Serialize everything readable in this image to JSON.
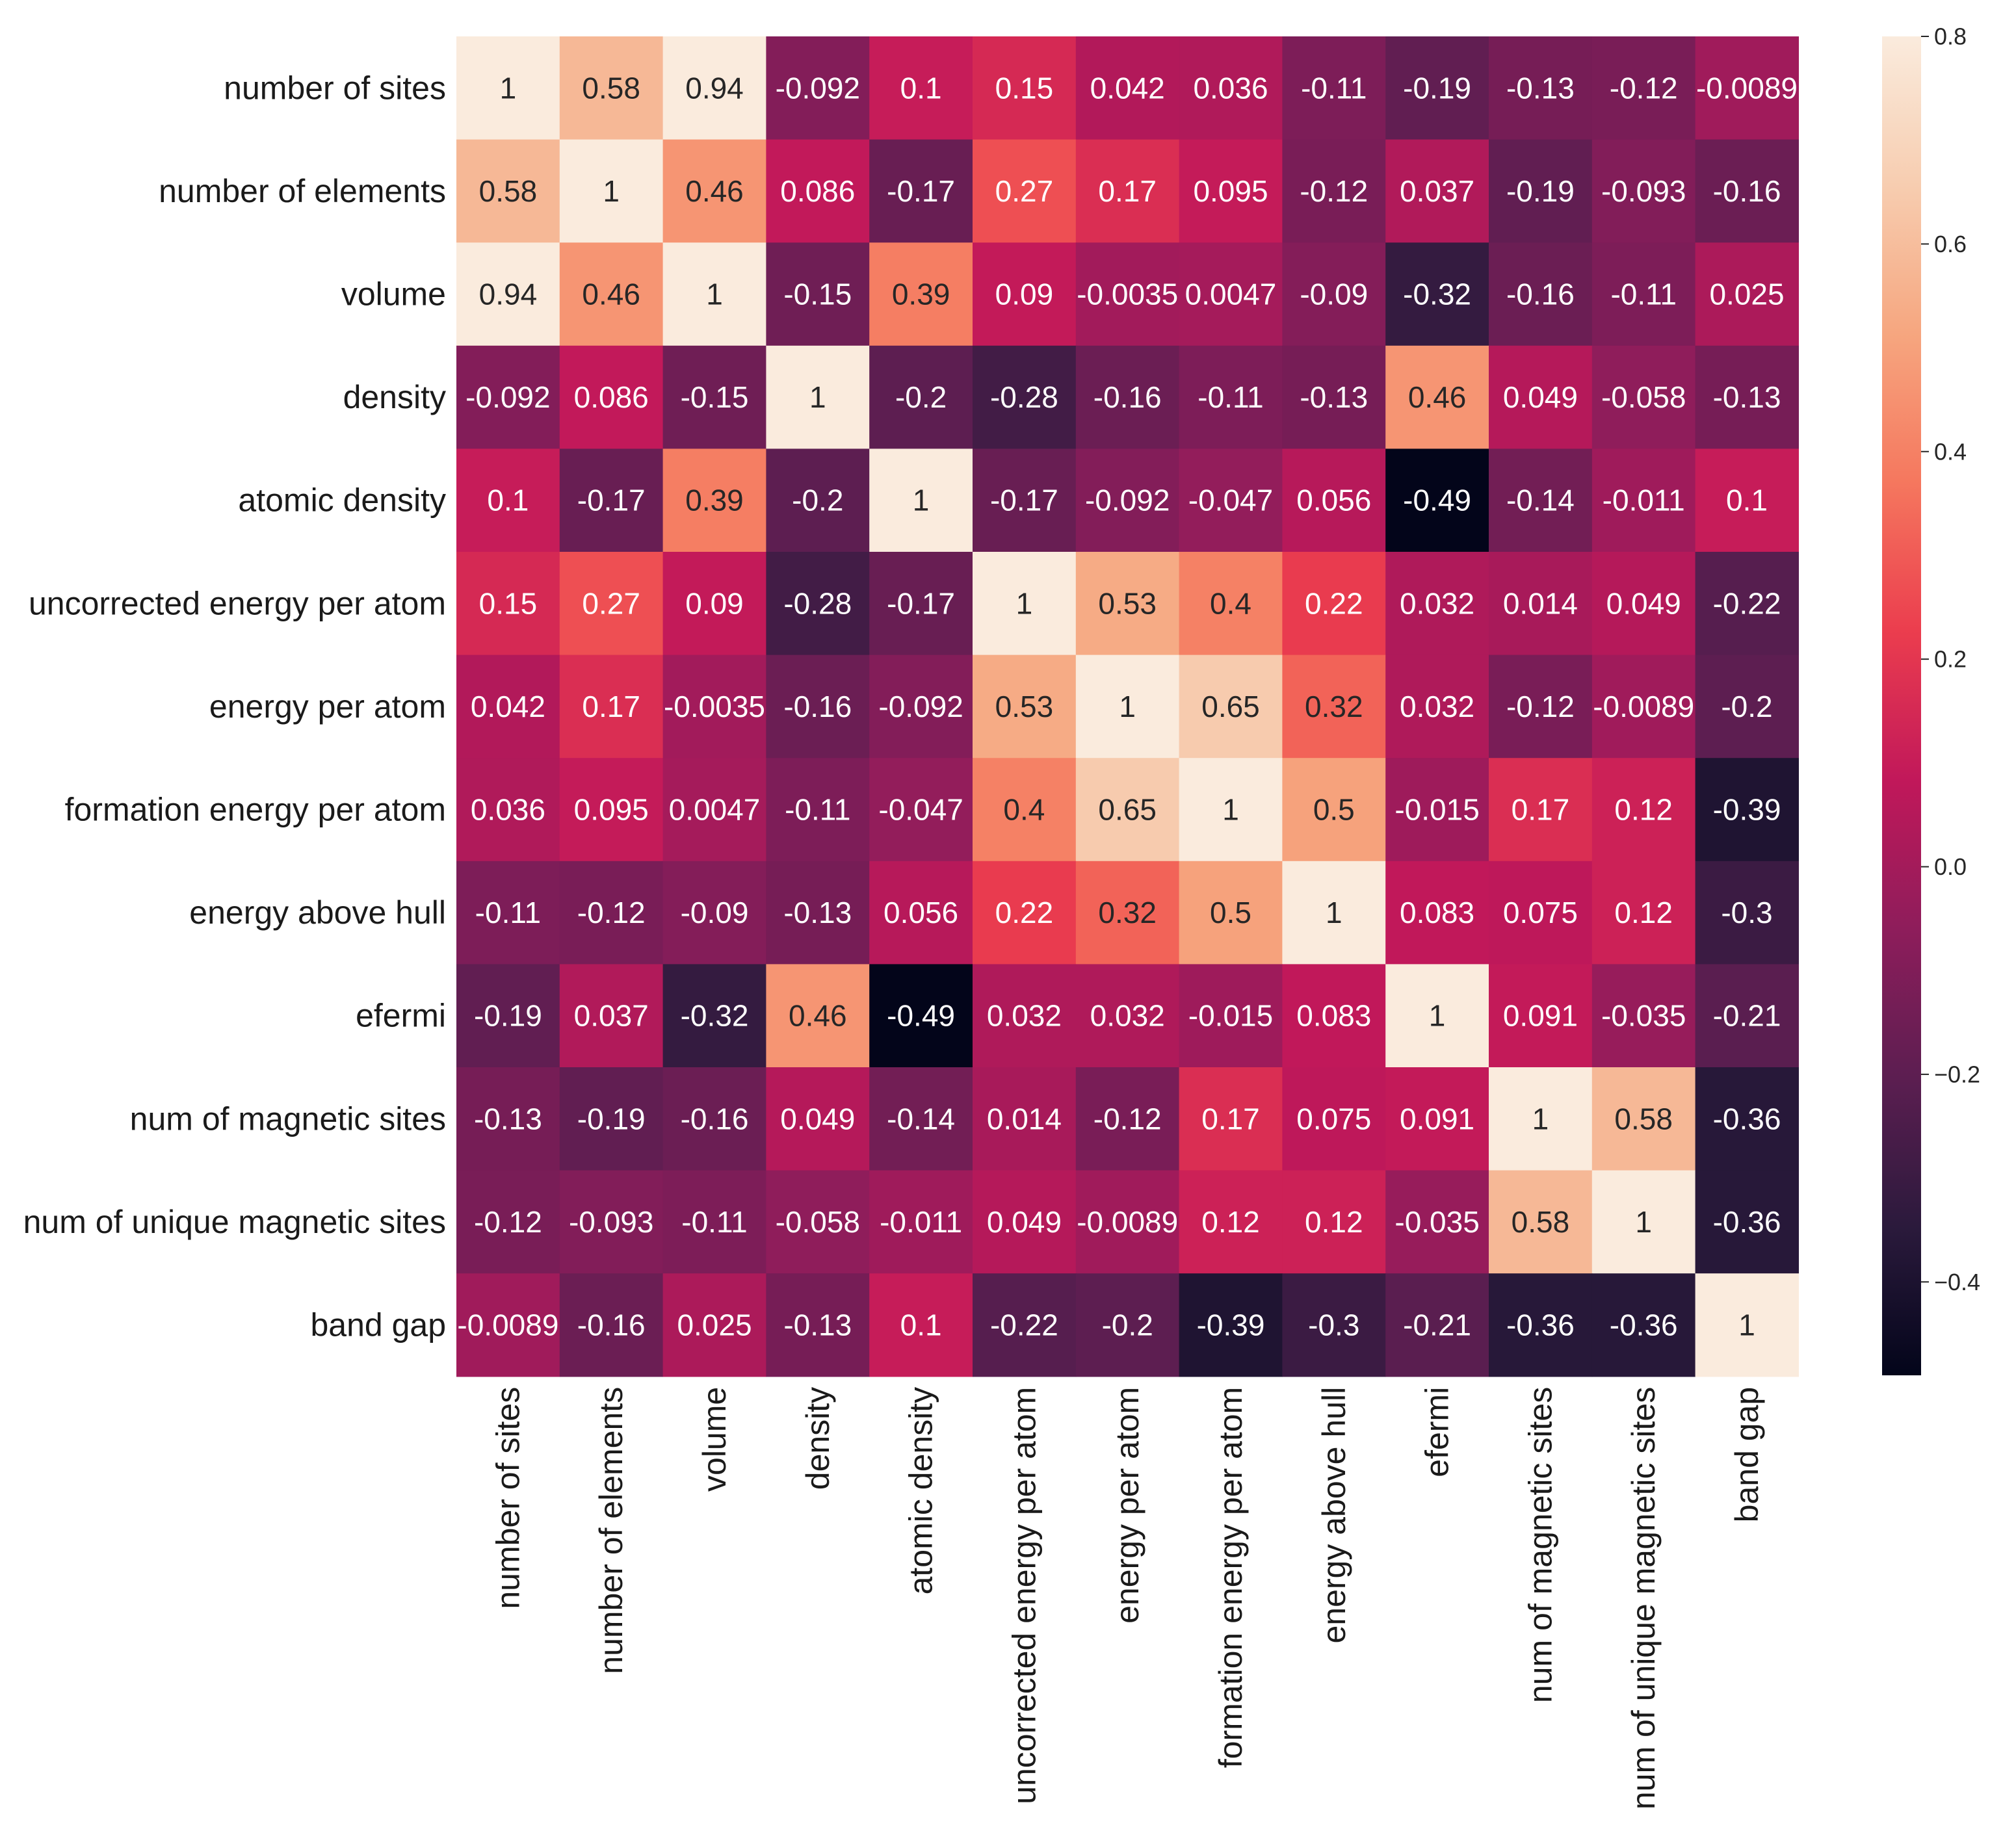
{
  "chart_data": {
    "type": "heatmap",
    "title": "",
    "xlabel": "",
    "ylabel": "",
    "labels": [
      "number of sites",
      "number of elements",
      "volume",
      "density",
      "atomic density",
      "uncorrected energy per atom",
      "energy per atom",
      "formation energy per atom",
      "energy above hull",
      "efermi",
      "num of magnetic sites",
      "num of unique magnetic sites",
      "band gap"
    ],
    "values": [
      [
        1,
        0.58,
        0.94,
        -0.092,
        0.1,
        0.15,
        0.042,
        0.036,
        -0.11,
        -0.19,
        -0.13,
        -0.12,
        -0.0089
      ],
      [
        0.58,
        1,
        0.46,
        0.086,
        -0.17,
        0.27,
        0.17,
        0.095,
        -0.12,
        0.037,
        -0.19,
        -0.093,
        -0.16
      ],
      [
        0.94,
        0.46,
        1,
        -0.15,
        0.39,
        0.09,
        -0.0035,
        0.0047,
        -0.09,
        -0.32,
        -0.16,
        -0.11,
        0.025
      ],
      [
        -0.092,
        0.086,
        -0.15,
        1,
        -0.2,
        -0.28,
        -0.16,
        -0.11,
        -0.13,
        0.46,
        0.049,
        -0.058,
        -0.13
      ],
      [
        0.1,
        -0.17,
        0.39,
        -0.2,
        1,
        -0.17,
        -0.092,
        -0.047,
        0.056,
        -0.49,
        -0.14,
        -0.011,
        0.1
      ],
      [
        0.15,
        0.27,
        0.09,
        -0.28,
        -0.17,
        1,
        0.53,
        0.4,
        0.22,
        0.032,
        0.014,
        0.049,
        -0.22
      ],
      [
        0.042,
        0.17,
        -0.0035,
        -0.16,
        -0.092,
        0.53,
        1,
        0.65,
        0.32,
        0.032,
        -0.12,
        -0.0089,
        -0.2
      ],
      [
        0.036,
        0.095,
        0.0047,
        -0.11,
        -0.047,
        0.4,
        0.65,
        1,
        0.5,
        -0.015,
        0.17,
        0.12,
        -0.39
      ],
      [
        -0.11,
        -0.12,
        -0.09,
        -0.13,
        0.056,
        0.22,
        0.32,
        0.5,
        1,
        0.083,
        0.075,
        0.12,
        -0.3
      ],
      [
        -0.19,
        0.037,
        -0.32,
        0.46,
        -0.49,
        0.032,
        0.032,
        -0.015,
        0.083,
        1,
        0.091,
        -0.035,
        -0.21
      ],
      [
        -0.13,
        -0.19,
        -0.16,
        0.049,
        -0.14,
        0.014,
        -0.12,
        0.17,
        0.075,
        0.091,
        1,
        0.58,
        -0.36
      ],
      [
        -0.12,
        -0.093,
        -0.11,
        -0.058,
        -0.011,
        0.049,
        -0.0089,
        0.12,
        0.12,
        -0.035,
        0.58,
        1,
        -0.36
      ],
      [
        -0.0089,
        -0.16,
        0.025,
        -0.13,
        0.1,
        -0.22,
        -0.2,
        -0.39,
        -0.3,
        -0.21,
        -0.36,
        -0.36,
        1
      ]
    ],
    "value_labels": [
      [
        "1",
        "0.58",
        "0.94",
        "-0.092",
        "0.1",
        "0.15",
        "0.042",
        "0.036",
        "-0.11",
        "-0.19",
        "-0.13",
        "-0.12",
        "-0.0089"
      ],
      [
        "0.58",
        "1",
        "0.46",
        "0.086",
        "-0.17",
        "0.27",
        "0.17",
        "0.095",
        "-0.12",
        "0.037",
        "-0.19",
        "-0.093",
        "-0.16"
      ],
      [
        "0.94",
        "0.46",
        "1",
        "-0.15",
        "0.39",
        "0.09",
        "-0.0035",
        "0.0047",
        "-0.09",
        "-0.32",
        "-0.16",
        "-0.11",
        "0.025"
      ],
      [
        "-0.092",
        "0.086",
        "-0.15",
        "1",
        "-0.2",
        "-0.28",
        "-0.16",
        "-0.11",
        "-0.13",
        "0.46",
        "0.049",
        "-0.058",
        "-0.13"
      ],
      [
        "0.1",
        "-0.17",
        "0.39",
        "-0.2",
        "1",
        "-0.17",
        "-0.092",
        "-0.047",
        "0.056",
        "-0.49",
        "-0.14",
        "-0.011",
        "0.1"
      ],
      [
        "0.15",
        "0.27",
        "0.09",
        "-0.28",
        "-0.17",
        "1",
        "0.53",
        "0.4",
        "0.22",
        "0.032",
        "0.014",
        "0.049",
        "-0.22"
      ],
      [
        "0.042",
        "0.17",
        "-0.0035",
        "-0.16",
        "-0.092",
        "0.53",
        "1",
        "0.65",
        "0.32",
        "0.032",
        "-0.12",
        "-0.0089",
        "-0.2"
      ],
      [
        "0.036",
        "0.095",
        "0.0047",
        "-0.11",
        "-0.047",
        "0.4",
        "0.65",
        "1",
        "0.5",
        "-0.015",
        "0.17",
        "0.12",
        "-0.39"
      ],
      [
        "-0.11",
        "-0.12",
        "-0.09",
        "-0.13",
        "0.056",
        "0.22",
        "0.32",
        "0.5",
        "1",
        "0.083",
        "0.075",
        "0.12",
        "-0.3"
      ],
      [
        "-0.19",
        "0.037",
        "-0.32",
        "0.46",
        "-0.49",
        "0.032",
        "0.032",
        "-0.015",
        "0.083",
        "1",
        "0.091",
        "-0.035",
        "-0.21"
      ],
      [
        "-0.13",
        "-0.19",
        "-0.16",
        "0.049",
        "-0.14",
        "0.014",
        "-0.12",
        "0.17",
        "0.075",
        "0.091",
        "1",
        "0.58",
        "-0.36"
      ],
      [
        "-0.12",
        "-0.093",
        "-0.11",
        "-0.058",
        "-0.011",
        "0.049",
        "-0.0089",
        "0.12",
        "0.12",
        "-0.035",
        "0.58",
        "1",
        "-0.36"
      ],
      [
        "-0.0089",
        "-0.16",
        "0.025",
        "-0.13",
        "0.1",
        "-0.22",
        "-0.2",
        "-0.39",
        "-0.3",
        "-0.21",
        "-0.36",
        "-0.36",
        "1"
      ]
    ],
    "colormap": "rocket",
    "color_range": [
      -0.49,
      0.8
    ],
    "colorbar_ticks": [
      {
        "value": 0.8,
        "label": "0.8"
      },
      {
        "value": 0.6,
        "label": "0.6"
      },
      {
        "value": 0.4,
        "label": "0.4"
      },
      {
        "value": 0.2,
        "label": "0.2"
      },
      {
        "value": 0.0,
        "label": "0.0"
      },
      {
        "value": -0.2,
        "label": "−0.2"
      },
      {
        "value": -0.4,
        "label": "−0.4"
      }
    ],
    "colormap_stops": [
      "#03051a",
      "#2b1a3c",
      "#5c1e51",
      "#8e1d5b",
      "#c1185a",
      "#eb3d4e",
      "#f5775e",
      "#f6a67f",
      "#f7cdb0",
      "#faebdd"
    ],
    "legend": "right"
  }
}
